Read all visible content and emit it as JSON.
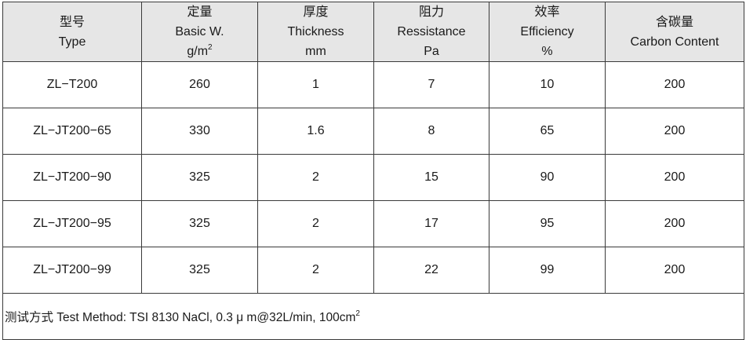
{
  "headers": [
    {
      "zh": "型号",
      "en": "Type",
      "unit": "",
      "unit_sup": ""
    },
    {
      "zh": "定量",
      "en": "Basic W.",
      "unit": "g/m",
      "unit_sup": "2"
    },
    {
      "zh": "厚度",
      "en": "Thickness",
      "unit": "mm",
      "unit_sup": ""
    },
    {
      "zh": "阻力",
      "en": "Ressistance",
      "unit": "Pa",
      "unit_sup": ""
    },
    {
      "zh": "效率",
      "en": "Efficiency",
      "unit": "%",
      "unit_sup": ""
    },
    {
      "zh": "含碳量",
      "en": "Carbon Content",
      "unit": "",
      "unit_sup": ""
    }
  ],
  "rows": [
    [
      "ZL−T200",
      "260",
      "1",
      "7",
      "10",
      "200"
    ],
    [
      "ZL−JT200−65",
      "330",
      "1.6",
      "8",
      "65",
      "200"
    ],
    [
      "ZL−JT200−90",
      "325",
      "2",
      "15",
      "90",
      "200"
    ],
    [
      "ZL−JT200−95",
      "325",
      "2",
      "17",
      "95",
      "200"
    ],
    [
      "ZL−JT200−99",
      "325",
      "2",
      "22",
      "99",
      "200"
    ]
  ],
  "footnote": {
    "text": "测试方式 Test Method: TSI 8130 NaCl, 0.3 μ m@32L/min, 100cm",
    "sup": "2"
  },
  "colors": {
    "header_bg": "#e6e6e6",
    "border": "#3a3a3a",
    "text": "#1a1a1a"
  }
}
